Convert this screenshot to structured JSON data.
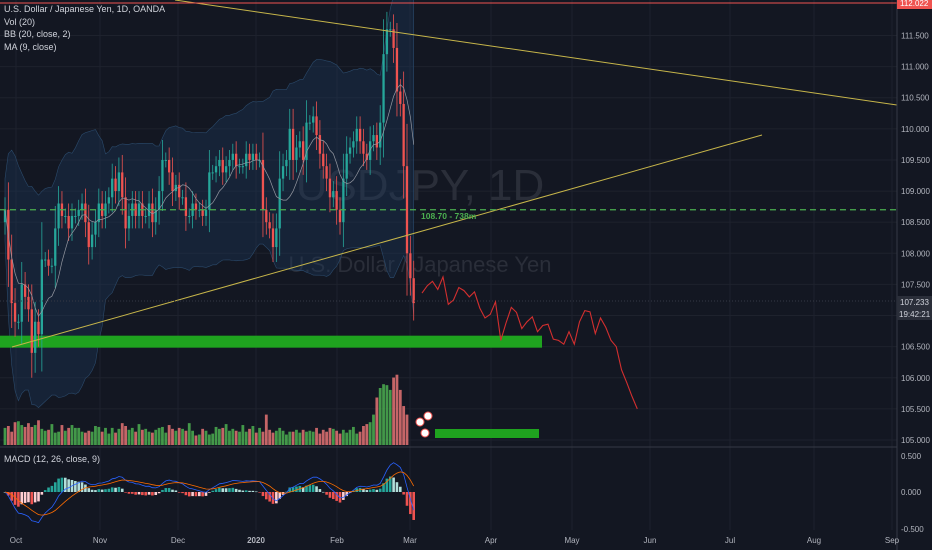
{
  "legend": {
    "symbol": "U.S. Dollar / Japanese Yen, 1D, OANDA",
    "vol": "Vol (20)",
    "bb": "BB (20, close, 2)",
    "ma": "MA (9, close)",
    "macd": "MACD (12, 26, close, 9)"
  },
  "watermark": {
    "ticker": "USDJPY, 1D",
    "name": "U.S. Dollar / Japanese Yen"
  },
  "price_badges": {
    "top": "112.022",
    "last": "107.233",
    "countdown": "19:42:21"
  },
  "level_label": "108.70 - 738m",
  "colors": {
    "up": "#26a69a",
    "down": "#ef5350",
    "bg": "#131722",
    "trend": "#c7b64a",
    "level": "#4caf50",
    "forecast": "#d32f2f",
    "zone": "#1fa31f"
  },
  "chart_data": {
    "type": "candlestick",
    "price_axis": {
      "ticks": [
        105.0,
        105.5,
        106.0,
        106.5,
        107.0,
        107.5,
        108.0,
        108.5,
        109.0,
        109.5,
        110.0,
        110.5,
        111.0,
        111.5
      ],
      "labels": [
        "105.000",
        "105.500",
        "106.000",
        "106.500",
        "107.000",
        "107.500",
        "108.000",
        "108.500",
        "109.000",
        "109.500",
        "110.000",
        "110.500",
        "111.000",
        "111.500"
      ],
      "range": [
        104.93,
        112.03
      ]
    },
    "macd_axis": {
      "ticks": [
        0.5,
        0.0,
        -0.5
      ],
      "labels": [
        "0.500",
        "0.000",
        "-0.500"
      ],
      "range": [
        -0.62,
        0.58
      ]
    },
    "time_axis": {
      "labels": [
        "Oct",
        "Nov",
        "Dec",
        "2020",
        "Feb",
        "Mar",
        "Apr",
        "May",
        "Jun",
        "Jul",
        "Aug",
        "Sep"
      ]
    },
    "closes": [
      108.7,
      107.9,
      107.2,
      106.9,
      106.9,
      107.5,
      107.3,
      107.1,
      106.4,
      106.9,
      106.7,
      107.9,
      107.9,
      107.8,
      107.8,
      108.4,
      108.8,
      108.6,
      108.6,
      108.4,
      108.6,
      108.6,
      108.7,
      108.8,
      108.5,
      108.1,
      108.3,
      108.5,
      108.8,
      108.6,
      108.8,
      108.9,
      109.2,
      109.0,
      109.3,
      108.9,
      108.4,
      108.6,
      108.8,
      108.6,
      108.8,
      108.6,
      108.6,
      108.8,
      108.5,
      108.7,
      109.0,
      109.5,
      109.5,
      109.3,
      109.0,
      109.1,
      108.9,
      108.9,
      108.6,
      108.6,
      108.8,
      108.7,
      108.7,
      108.6,
      108.7,
      109.3,
      109.3,
      109.4,
      109.5,
      109.3,
      109.4,
      109.5,
      109.6,
      109.4,
      109.4,
      109.4,
      109.6,
      109.5,
      109.6,
      109.5,
      109.5,
      108.7,
      108.5,
      108.4,
      108.1,
      108.4,
      109.2,
      109.4,
      109.5,
      110.0,
      109.5,
      109.7,
      109.8,
      109.5,
      110.1,
      110.1,
      110.2,
      109.9,
      109.6,
      109.4,
      109.2,
      108.9,
      109.0,
      108.7,
      108.5,
      109.2,
      109.6,
      109.7,
      109.8,
      110.0,
      109.8,
      109.6,
      109.5,
      109.8,
      109.9,
      109.7,
      110.1,
      111.2,
      111.6,
      111.6,
      111.3,
      110.6,
      110.4,
      109.4,
      108.0,
      107.6,
      107.2
    ],
    "vol_axis_max": 100,
    "volumes": [
      18,
      20,
      14,
      24,
      25,
      21,
      19,
      23,
      19,
      21,
      26,
      17,
      15,
      16,
      22,
      13,
      14,
      21,
      15,
      18,
      21,
      18,
      18,
      14,
      13,
      15,
      14,
      20,
      19,
      14,
      18,
      12,
      18,
      13,
      17,
      23,
      20,
      16,
      18,
      14,
      22,
      16,
      17,
      14,
      13,
      16,
      18,
      19,
      13,
      21,
      17,
      15,
      18,
      17,
      15,
      23,
      15,
      10,
      11,
      17,
      15,
      11,
      12,
      19,
      17,
      18,
      22,
      15,
      17,
      15,
      14,
      21,
      14,
      17,
      20,
      13,
      18,
      14,
      32,
      16,
      13,
      15,
      18,
      15,
      11,
      14,
      14,
      16,
      13,
      16,
      14,
      15,
      14,
      18,
      12,
      16,
      14,
      18,
      17,
      15,
      12,
      16,
      13,
      16,
      19,
      12,
      14,
      20,
      22,
      24,
      32,
      50,
      60,
      64,
      63,
      58,
      71,
      74,
      58,
      41,
      32
    ],
    "forecast": [
      [
        107.36,
        107.48
      ],
      [
        107.55,
        107.42
      ],
      [
        107.62,
        107.18
      ],
      [
        107.25,
        107.45
      ],
      [
        107.4,
        107.3
      ],
      [
        107.38,
        107.12
      ],
      [
        106.96,
        107.02
      ],
      [
        107.22,
        106.6
      ],
      [
        106.88,
        107.13
      ],
      [
        107.05,
        106.79
      ],
      [
        106.9,
        106.98
      ],
      [
        106.74,
        106.84
      ],
      [
        106.86,
        106.62
      ],
      [
        106.6,
        106.54
      ],
      [
        106.74,
        106.54
      ],
      [
        106.9,
        107.08
      ],
      [
        107.06,
        106.71
      ],
      [
        106.96,
        106.81
      ],
      [
        106.6,
        106.5
      ],
      [
        106.13,
        105.92
      ],
      [
        105.7,
        105.5
      ]
    ],
    "levels": [
      108.7
    ],
    "zones": [
      106.58
    ]
  }
}
